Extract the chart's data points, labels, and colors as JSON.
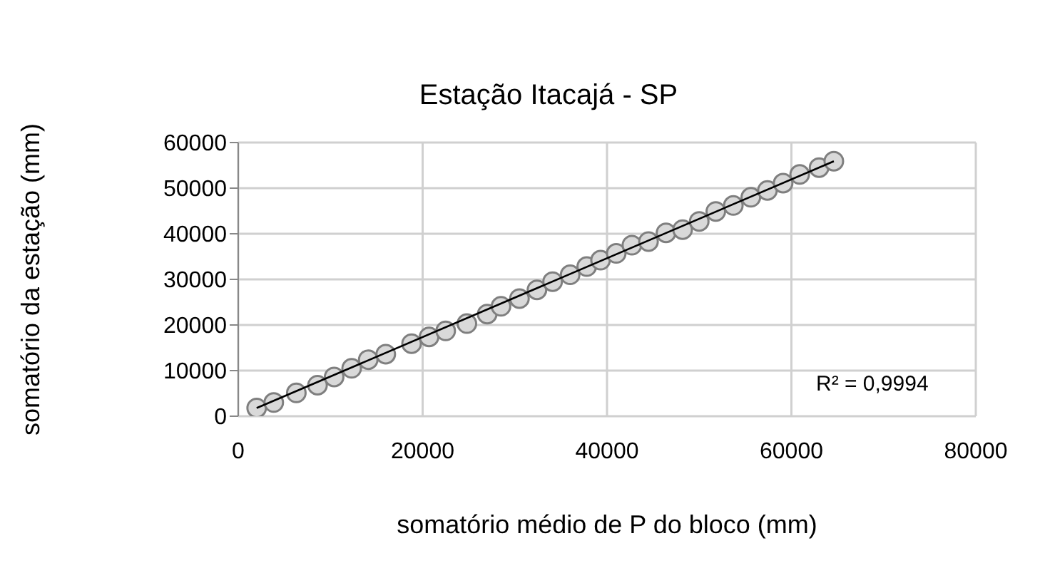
{
  "chart_data": {
    "type": "scatter",
    "title": "Estação Itacajá - SP",
    "xlabel": "somatório médio de P do bloco (mm)",
    "ylabel": "somatório da estação (mm)",
    "annotations": [
      "R² = 0,9994"
    ],
    "xlim": [
      0,
      80000
    ],
    "xticks": [
      0,
      20000,
      40000,
      60000,
      80000
    ],
    "ylim": [
      0,
      60000
    ],
    "yticks": [
      0,
      10000,
      20000,
      30000,
      40000,
      50000,
      60000
    ],
    "grid": true,
    "legend": false,
    "marker": "circle",
    "series": [
      {
        "color": "#d9d9d9",
        "x": [
          2000,
          3850,
          6300,
          8600,
          10400,
          12300,
          14100,
          16000,
          18800,
          20700,
          22500,
          24800,
          27000,
          28500,
          30500,
          32400,
          34100,
          36000,
          37800,
          39300,
          41000,
          42700,
          44500,
          46400,
          48200,
          50000,
          51800,
          53700,
          55600,
          57400,
          59100,
          60900,
          63000,
          64600
        ],
        "values": [
          1800,
          3000,
          5100,
          6800,
          8600,
          10500,
          12400,
          13600,
          15900,
          17400,
          18700,
          20300,
          22400,
          24100,
          25800,
          27700,
          29500,
          31000,
          32800,
          34200,
          35700,
          37500,
          38300,
          40200,
          40900,
          42700,
          44900,
          46200,
          48000,
          49500,
          51100,
          53000,
          54500,
          55900
        ]
      },
      {
        "type": "line",
        "color": "#000000",
        "x": [
          2000,
          64600
        ],
        "values": [
          1800,
          55900
        ],
        "marker": "none",
        "line_style": "solid"
      }
    ]
  }
}
